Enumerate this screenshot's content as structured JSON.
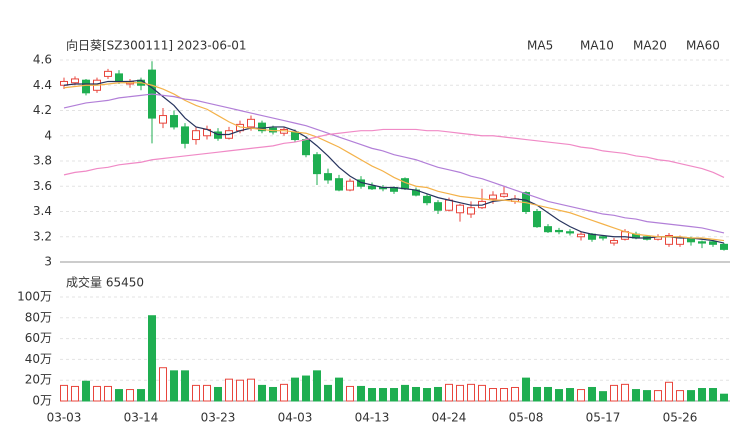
{
  "chart_data": [
    {
      "type": "candlestick",
      "title": "向日葵[SZ300111] 2023-06-01",
      "categories": [
        "03-03",
        null,
        null,
        null,
        null,
        null,
        null,
        "03-14",
        null,
        null,
        null,
        null,
        null,
        null,
        "03-23",
        null,
        null,
        null,
        null,
        null,
        null,
        "04-03",
        null,
        null,
        null,
        null,
        null,
        null,
        "04-13",
        null,
        null,
        null,
        null,
        null,
        null,
        "04-24",
        null,
        null,
        null,
        null,
        null,
        null,
        "05-08",
        null,
        null,
        null,
        null,
        null,
        null,
        "05-17",
        null,
        null,
        null,
        null,
        null,
        null,
        "05-26",
        null,
        null,
        null,
        null
      ],
      "open": [
        4.4,
        4.42,
        4.44,
        4.36,
        4.47,
        4.49,
        4.41,
        4.44,
        4.52,
        4.1,
        4.16,
        4.07,
        3.97,
        4.0,
        4.03,
        3.98,
        4.04,
        4.07,
        4.1,
        4.06,
        4.02,
        4.03,
        3.97,
        3.85,
        3.7,
        3.66,
        3.57,
        3.65,
        3.6,
        3.59,
        3.59,
        3.66,
        3.57,
        3.52,
        3.47,
        3.41,
        3.39,
        3.38,
        3.43,
        3.5,
        3.52,
        3.48,
        3.55,
        3.4,
        3.28,
        3.25,
        3.24,
        3.2,
        3.22,
        3.2,
        3.15,
        3.18,
        3.22,
        3.2,
        3.18,
        3.14,
        3.14,
        3.19,
        3.16,
        3.16,
        3.14
      ],
      "high": [
        4.46,
        4.47,
        4.45,
        4.46,
        4.53,
        4.52,
        4.45,
        4.46,
        4.59,
        4.22,
        4.2,
        4.1,
        4.07,
        4.08,
        4.06,
        4.07,
        4.12,
        4.16,
        4.12,
        4.08,
        4.07,
        4.05,
        3.99,
        3.87,
        3.74,
        3.69,
        3.66,
        3.68,
        3.63,
        3.61,
        3.6,
        3.67,
        3.59,
        3.54,
        3.49,
        3.51,
        3.46,
        3.48,
        3.58,
        3.56,
        3.6,
        3.53,
        3.56,
        3.42,
        3.3,
        3.27,
        3.26,
        3.24,
        3.23,
        3.21,
        3.19,
        3.26,
        3.24,
        3.21,
        3.22,
        3.23,
        3.21,
        3.2,
        3.17,
        3.17,
        3.15
      ],
      "low": [
        4.37,
        4.4,
        4.32,
        4.34,
        4.45,
        4.41,
        4.38,
        4.36,
        3.94,
        4.06,
        4.05,
        3.9,
        3.93,
        3.97,
        3.96,
        3.97,
        4.02,
        4.04,
        4.02,
        4.01,
        4.0,
        3.95,
        3.83,
        3.61,
        3.62,
        3.56,
        3.56,
        3.58,
        3.57,
        3.56,
        3.54,
        3.57,
        3.52,
        3.45,
        3.38,
        3.4,
        3.32,
        3.35,
        3.42,
        3.46,
        3.51,
        3.46,
        3.38,
        3.27,
        3.23,
        3.22,
        3.21,
        3.17,
        3.16,
        3.17,
        3.13,
        3.17,
        3.18,
        3.17,
        3.17,
        3.12,
        3.12,
        3.13,
        3.11,
        3.12,
        3.09
      ],
      "close": [
        4.43,
        4.45,
        4.34,
        4.44,
        4.51,
        4.43,
        4.43,
        4.4,
        4.14,
        4.16,
        4.07,
        3.94,
        4.04,
        4.05,
        3.98,
        4.04,
        4.09,
        4.13,
        4.04,
        4.03,
        4.05,
        3.97,
        3.85,
        3.7,
        3.65,
        3.57,
        3.64,
        3.6,
        3.58,
        3.58,
        3.56,
        3.58,
        3.53,
        3.47,
        3.41,
        3.49,
        3.45,
        3.43,
        3.48,
        3.53,
        3.54,
        3.5,
        3.4,
        3.28,
        3.24,
        3.24,
        3.23,
        3.22,
        3.18,
        3.19,
        3.17,
        3.24,
        3.19,
        3.18,
        3.2,
        3.21,
        3.19,
        3.16,
        3.15,
        3.14,
        3.1
      ],
      "up_color": "#e8453c",
      "down_color": "#1fae51",
      "series": [
        {
          "name": "MA5",
          "color": "#27345e",
          "values": [
            4.4,
            4.41,
            4.41,
            4.41,
            4.43,
            4.43,
            4.43,
            4.44,
            4.38,
            4.31,
            4.24,
            4.14,
            4.07,
            4.05,
            4.01,
            4.01,
            4.04,
            4.06,
            4.06,
            4.07,
            4.07,
            4.04,
            3.99,
            3.92,
            3.84,
            3.75,
            3.68,
            3.63,
            3.61,
            3.59,
            3.59,
            3.58,
            3.57,
            3.54,
            3.51,
            3.49,
            3.47,
            3.45,
            3.45,
            3.48,
            3.49,
            3.5,
            3.49,
            3.45,
            3.39,
            3.33,
            3.28,
            3.24,
            3.22,
            3.21,
            3.2,
            3.2,
            3.19,
            3.19,
            3.2,
            3.2,
            3.19,
            3.19,
            3.18,
            3.17,
            3.15
          ]
        },
        {
          "name": "MA10",
          "color": "#f4b24a",
          "values": [
            4.38,
            4.39,
            4.4,
            4.4,
            4.41,
            4.42,
            4.42,
            4.42,
            4.4,
            4.37,
            4.33,
            4.28,
            4.24,
            4.21,
            4.16,
            4.11,
            4.07,
            4.06,
            4.05,
            4.04,
            4.04,
            4.03,
            4.02,
            3.99,
            3.95,
            3.91,
            3.86,
            3.81,
            3.76,
            3.72,
            3.67,
            3.63,
            3.6,
            3.59,
            3.56,
            3.54,
            3.52,
            3.51,
            3.5,
            3.49,
            3.49,
            3.48,
            3.47,
            3.45,
            3.43,
            3.41,
            3.39,
            3.36,
            3.33,
            3.3,
            3.27,
            3.24,
            3.22,
            3.21,
            3.2,
            3.2,
            3.2,
            3.19,
            3.19,
            3.18,
            3.17
          ]
        },
        {
          "name": "MA20",
          "color": "#b27fd8",
          "values": [
            4.22,
            4.24,
            4.26,
            4.27,
            4.28,
            4.3,
            4.31,
            4.32,
            4.33,
            4.32,
            4.31,
            4.29,
            4.28,
            4.26,
            4.24,
            4.22,
            4.2,
            4.18,
            4.16,
            4.14,
            4.12,
            4.1,
            4.08,
            4.05,
            4.02,
            3.99,
            3.96,
            3.93,
            3.9,
            3.88,
            3.85,
            3.83,
            3.81,
            3.78,
            3.75,
            3.73,
            3.71,
            3.68,
            3.66,
            3.63,
            3.6,
            3.57,
            3.54,
            3.51,
            3.48,
            3.46,
            3.44,
            3.42,
            3.4,
            3.38,
            3.37,
            3.35,
            3.34,
            3.32,
            3.31,
            3.3,
            3.29,
            3.28,
            3.27,
            3.25,
            3.23
          ]
        },
        {
          "name": "MA60",
          "color": "#f08ac6",
          "values": [
            3.69,
            3.71,
            3.72,
            3.74,
            3.75,
            3.77,
            3.78,
            3.79,
            3.81,
            3.82,
            3.83,
            3.84,
            3.85,
            3.86,
            3.87,
            3.88,
            3.89,
            3.9,
            3.91,
            3.92,
            3.94,
            3.95,
            3.97,
            3.99,
            4.01,
            4.02,
            4.03,
            4.04,
            4.04,
            4.05,
            4.05,
            4.05,
            4.05,
            4.04,
            4.04,
            4.03,
            4.02,
            4.01,
            4.0,
            4.0,
            3.99,
            3.98,
            3.97,
            3.96,
            3.95,
            3.94,
            3.93,
            3.91,
            3.9,
            3.88,
            3.87,
            3.86,
            3.84,
            3.83,
            3.81,
            3.8,
            3.78,
            3.76,
            3.74,
            3.71,
            3.67
          ]
        }
      ],
      "ylim": [
        3,
        4.6
      ],
      "yticks": [
        4.6,
        4.4,
        4.2,
        4,
        3.8,
        3.6,
        3.4,
        3.2,
        3
      ],
      "grid": true
    },
    {
      "type": "bar",
      "title": "成交量 65450",
      "values": [
        15,
        14,
        19,
        14,
        14,
        11,
        11,
        11,
        82,
        32,
        29,
        29,
        15,
        15,
        13,
        21,
        20,
        21,
        15,
        13,
        16,
        22,
        24,
        29,
        15,
        22,
        14,
        14,
        12,
        12,
        12,
        15,
        13,
        12,
        13,
        16,
        15,
        16,
        15,
        12,
        12,
        13,
        22,
        13,
        13,
        11,
        12,
        11,
        13,
        9,
        15,
        16,
        11,
        10,
        10,
        18,
        10,
        10,
        12,
        12,
        6.545
      ],
      "ylim": [
        0,
        100
      ],
      "yticks": [
        {
          "value": 100,
          "label": "100万"
        },
        {
          "value": 80,
          "label": "80万"
        },
        {
          "value": 60,
          "label": "60万"
        },
        {
          "value": 40,
          "label": "40万"
        },
        {
          "value": 20,
          "label": "20万"
        },
        {
          "value": 0,
          "label": "0万"
        }
      ],
      "grid": true
    }
  ]
}
